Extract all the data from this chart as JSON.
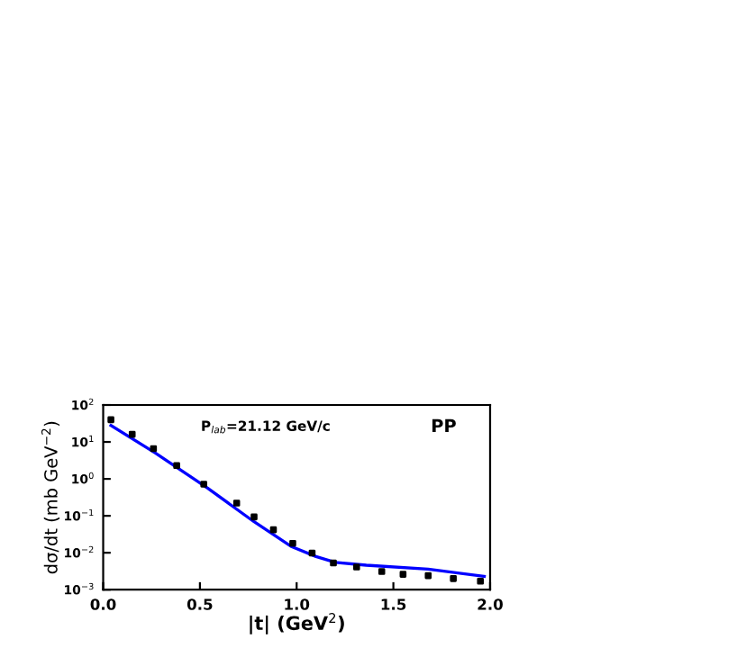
{
  "chart_data": {
    "type": "scatter",
    "xlabel": "|t| (GeV$^{2}$)",
    "ylabel": "dσ/dt (mb GeV$^{−2}$)",
    "annotations": [
      "P$_{lab}$=21.12 GeV/c",
      "PP"
    ],
    "log": "y",
    "xlim": [
      0.0,
      2.0
    ],
    "xticks": [
      {
        "value": 0.0,
        "label": "0.0"
      },
      {
        "value": 0.5,
        "label": "0.5"
      },
      {
        "value": 1.0,
        "label": "1.0"
      },
      {
        "value": 1.5,
        "label": "1.5"
      },
      {
        "value": 2.0,
        "label": "2.0"
      }
    ],
    "ylim": [
      0.001,
      100
    ],
    "yticks": [
      {
        "value": 0.001,
        "label": "10$^{−3}$"
      },
      {
        "value": 0.01,
        "label": "10$^{−2}$"
      },
      {
        "value": 0.1,
        "label": "10$^{−1}$"
      },
      {
        "value": 1,
        "label": "10$^{0}$"
      },
      {
        "value": 10,
        "label": "10$^{1}$"
      },
      {
        "value": 100,
        "label": "10$^{2}$"
      }
    ],
    "grid": false,
    "legend": false,
    "series": [
      {
        "color": "#000000",
        "marker": "square",
        "x": [
          0.04,
          0.15,
          0.26,
          0.38,
          0.52,
          0.69,
          0.78,
          0.88,
          0.98,
          1.08,
          1.19,
          1.31,
          1.44,
          1.55,
          1.68,
          1.81,
          1.95
        ],
        "values": [
          40,
          16,
          6.6,
          2.3,
          0.72,
          0.22,
          0.093,
          0.042,
          0.018,
          0.0098,
          0.0053,
          0.0041,
          0.0031,
          0.0026,
          0.0024,
          0.002,
          0.0017
        ]
      },
      {
        "type": "line",
        "color": "#0000ff",
        "marker": "none",
        "line_style": "solid",
        "x": [
          0.04,
          0.27,
          0.54,
          0.78,
          0.97,
          1.1,
          1.2,
          1.36,
          1.68,
          1.97
        ],
        "values": [
          28,
          5,
          0.56,
          0.069,
          0.015,
          0.0079,
          0.0055,
          0.0046,
          0.0036,
          0.0023
        ]
      }
    ]
  }
}
